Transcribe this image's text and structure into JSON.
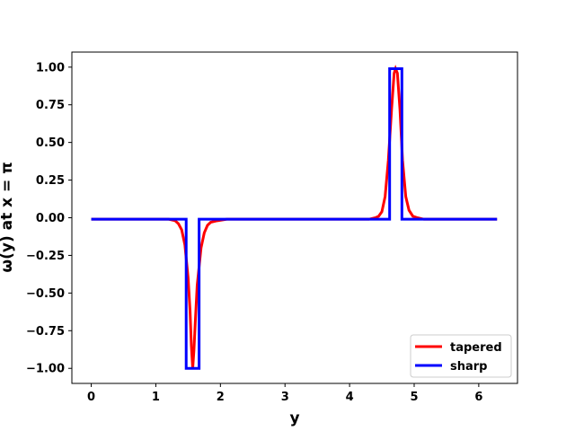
{
  "chart_data": {
    "type": "line",
    "title": "",
    "xlabel": "y",
    "ylabel": "ω(y) at x = π",
    "xlim": [
      -0.3,
      6.6
    ],
    "ylim": [
      -1.1,
      1.1
    ],
    "xticks": [
      0,
      1,
      2,
      3,
      4,
      5,
      6
    ],
    "xtick_labels": [
      "0",
      "1",
      "2",
      "3",
      "4",
      "5",
      "6"
    ],
    "yticks": [
      -1.0,
      -0.75,
      -0.5,
      -0.25,
      0.0,
      0.25,
      0.5,
      0.75,
      1.0
    ],
    "ytick_labels": [
      "−1.00",
      "−0.75",
      "−0.50",
      "−0.25",
      "0.00",
      "0.25",
      "0.50",
      "0.75",
      "1.00"
    ],
    "grid": false,
    "legend_position": "bottom-right",
    "series": [
      {
        "name": "tapered",
        "color": "#ff0000",
        "x": [
          0,
          1.2,
          1.3,
          1.35,
          1.4,
          1.45,
          1.5,
          1.53,
          1.55,
          1.571,
          1.59,
          1.61,
          1.64,
          1.7,
          1.75,
          1.8,
          1.85,
          1.95,
          2.1,
          4.3,
          4.4,
          4.45,
          4.5,
          4.55,
          4.6,
          4.65,
          4.69,
          4.712,
          4.74,
          4.78,
          4.82,
          4.87,
          4.92,
          4.98,
          5.05,
          5.15,
          6.283
        ],
        "y": [
          -0.01,
          -0.01,
          -0.02,
          -0.04,
          -0.08,
          -0.18,
          -0.4,
          -0.62,
          -0.85,
          -1.0,
          -0.88,
          -0.7,
          -0.45,
          -0.2,
          -0.1,
          -0.05,
          -0.03,
          -0.02,
          -0.01,
          -0.01,
          0.0,
          0.01,
          0.04,
          0.14,
          0.38,
          0.72,
          0.96,
          0.99,
          0.96,
          0.72,
          0.38,
          0.14,
          0.05,
          0.01,
          0.0,
          -0.01,
          -0.01
        ]
      },
      {
        "name": "sharp",
        "color": "#0000ff",
        "x": [
          0,
          1.47,
          1.47,
          1.67,
          1.67,
          4.62,
          4.62,
          4.81,
          4.81,
          6.283
        ],
        "y": [
          -0.01,
          -0.01,
          -1.0,
          -1.0,
          -0.01,
          -0.01,
          0.99,
          0.99,
          -0.01,
          -0.01
        ]
      }
    ]
  }
}
